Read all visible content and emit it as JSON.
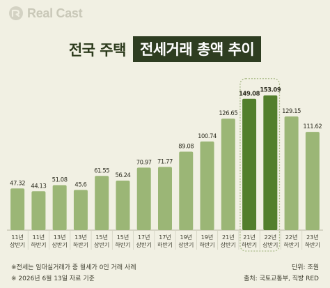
{
  "brand": {
    "name": "Real Cast",
    "icon": "realcast-logo-icon"
  },
  "title": {
    "part1": "전국 주택",
    "part2": "전세거래 총액 추이"
  },
  "colors": {
    "bar": "#9bb676",
    "bar_highlight": "#527f2c",
    "title_box": "#2e3d21",
    "background": "#f1f0e3",
    "highlight_frame": "#a9ba88"
  },
  "chart_data": {
    "type": "bar",
    "categories": [
      [
        "11년",
        "상반기"
      ],
      [
        "11년",
        "하반기"
      ],
      [
        "13년",
        "상반기"
      ],
      [
        "13년",
        "하반기"
      ],
      [
        "15년",
        "상반기"
      ],
      [
        "15년",
        "하반기"
      ],
      [
        "17년",
        "상반기"
      ],
      [
        "17년",
        "하반기"
      ],
      [
        "19년",
        "상반기"
      ],
      [
        "19년",
        "하반기"
      ],
      [
        "21년",
        "상반기"
      ],
      [
        "21년",
        "하반기"
      ],
      [
        "22년",
        "상반기"
      ],
      [
        "22년",
        "하반기"
      ],
      [
        "23년",
        "하반기"
      ]
    ],
    "values": [
      47.32,
      44.13,
      51.08,
      45.6,
      61.55,
      56.24,
      70.97,
      71.77,
      89.08,
      100.74,
      126.65,
      149.08,
      153.09,
      129.15,
      111.62
    ],
    "value_labels": [
      "47.32",
      "44.13",
      "51.08",
      "45.6",
      "61.55",
      "56.24",
      "70.97",
      "71.77",
      "89.08",
      "100.74",
      "126.65",
      "149.08",
      "153.09",
      "129.15",
      "111.62"
    ],
    "highlighted": [
      11,
      12
    ],
    "ylim": [
      0,
      160
    ],
    "unit": "단위: 조원",
    "grid": false,
    "legend": "none"
  },
  "notes": {
    "line1": "※전세는 임대실거래가 중 월세가 0인 거래 사례",
    "line2": "※ 2026년 6월 13일 자료 기준",
    "unit": "단위: 조원",
    "source": "출처: 국토교통부, 직방 RED"
  }
}
